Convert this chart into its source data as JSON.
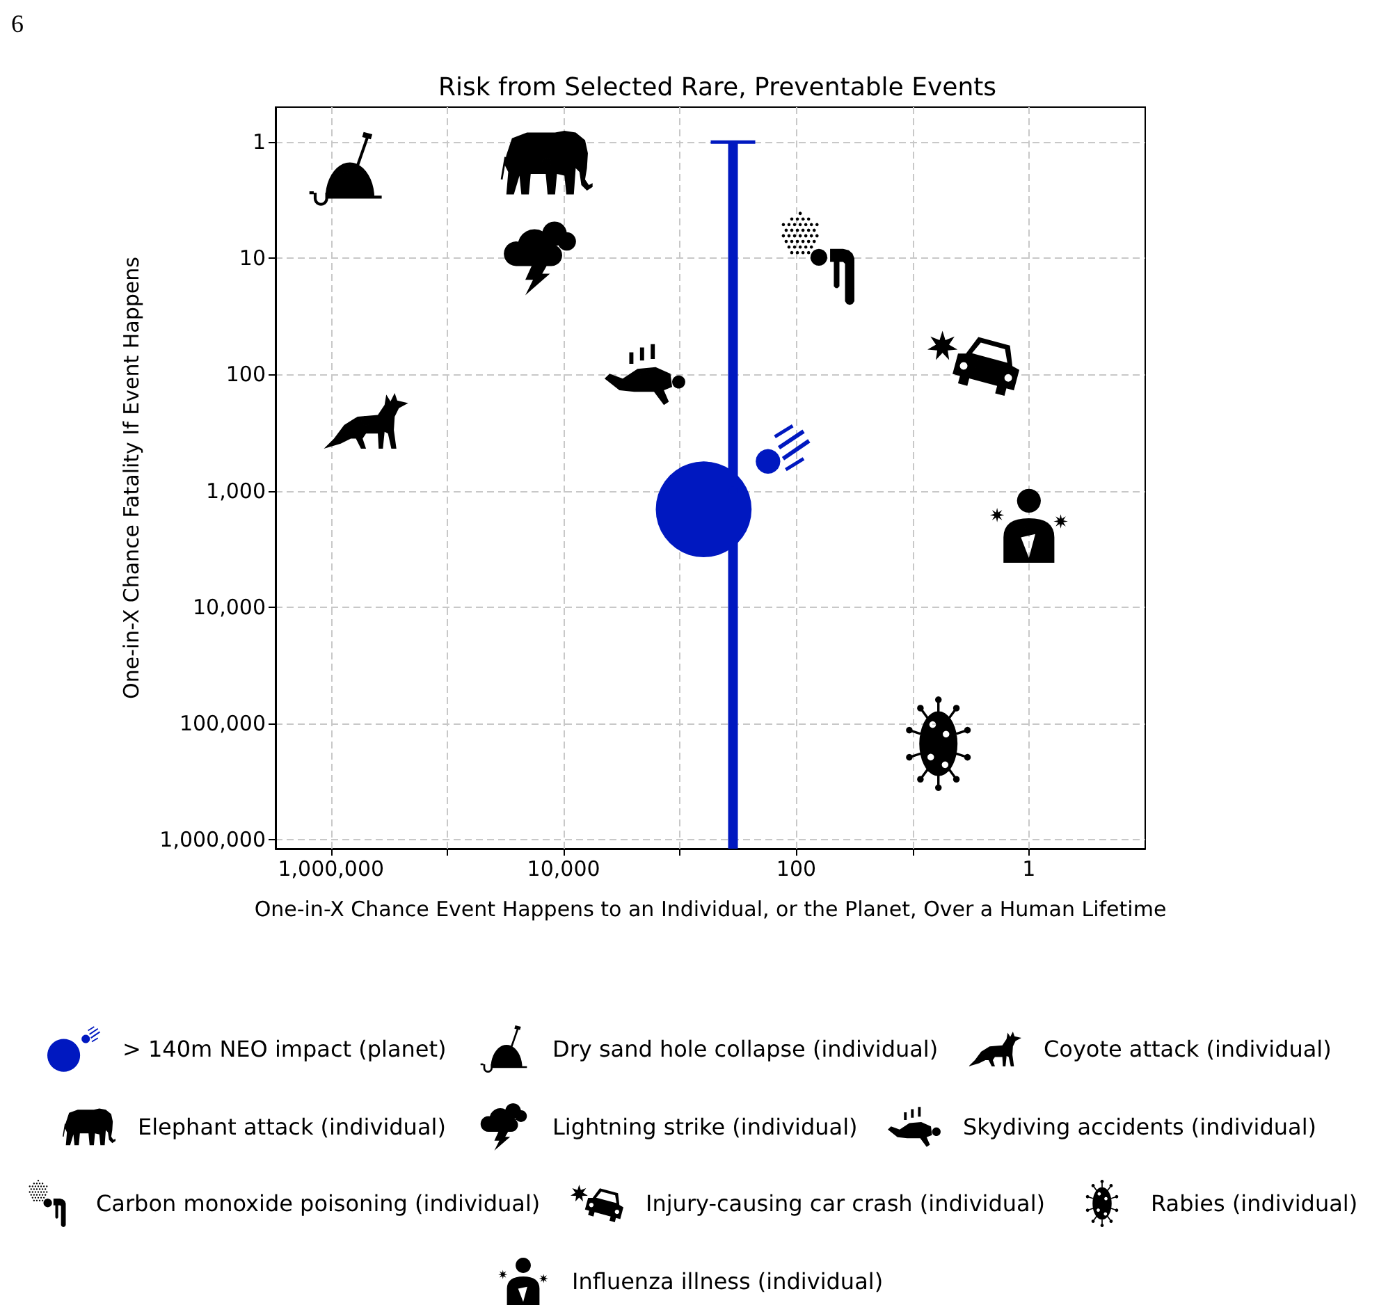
{
  "chart_data": {
    "type": "scatter",
    "title": "Risk from Selected Rare, Preventable Events",
    "xlabel": "One-in-X Chance Event Happens to an Individual, or the Planet, Over a Human Lifetime",
    "ylabel": "One-in-X Chance Fatality If Event Happens",
    "annotations": [
      "6"
    ],
    "log": "xy",
    "xlim": [
      3000000,
      0.1
    ],
    "xticks": [
      {
        "value": 1000000,
        "label": "1,000,000"
      },
      {
        "value": 100000,
        "label": null
      },
      {
        "value": 10000,
        "label": "10,000"
      },
      {
        "value": 1000,
        "label": null
      },
      100,
      {
        "value": 10,
        "label": null
      },
      1
    ],
    "ylim": [
      1200000,
      0.5
    ],
    "yticks": [
      1,
      10,
      100,
      {
        "value": 1000,
        "label": "1,000"
      },
      {
        "value": 10000,
        "label": "10,000"
      },
      {
        "value": 100000,
        "label": "100,000"
      },
      {
        "value": 1000000,
        "label": "1,000,000"
      }
    ],
    "grid": true,
    "legend": "bottom",
    "series": [
      {
        "name": "> 140m NEO impact (planet)",
        "color": "#0018c0",
        "x": [
          350
        ],
        "values": [
          1000
        ],
        "errors": [
          [
            1,
            1200000
          ]
        ]
      },
      {
        "name": "Dry sand hole collapse (individual)",
        "color": "#000000",
        "x": [
          750000
        ],
        "values": [
          1.7
        ]
      },
      {
        "name": "Coyote attack (individual)",
        "color": "#000000",
        "x": [
          500000
        ],
        "values": [
          250
        ]
      },
      {
        "name": "Elephant attack (individual)",
        "color": "#000000",
        "x": [
          14000
        ],
        "values": [
          1.5
        ]
      },
      {
        "name": "Lightning strike (individual)",
        "color": "#000000",
        "x": [
          16000
        ],
        "values": [
          10
        ]
      },
      {
        "name": "Skydiving accidents (individual)",
        "color": "#000000",
        "x": [
          2000
        ],
        "values": [
          100
        ]
      },
      {
        "name": "Carbon monoxide poisoning (individual)",
        "color": "#000000",
        "x": [
          65
        ],
        "values": [
          10
        ]
      },
      {
        "name": "Injury-causing car crash (individual)",
        "color": "#000000",
        "x": [
          3
        ],
        "values": [
          80
        ]
      },
      {
        "name": "Rabies (individual)",
        "color": "#000000",
        "x": [
          6
        ],
        "values": [
          150000
        ]
      },
      {
        "name": "Influenza illness (individual)",
        "color": "#000000",
        "x": [
          1
        ],
        "values": [
          2000
        ]
      }
    ]
  }
}
